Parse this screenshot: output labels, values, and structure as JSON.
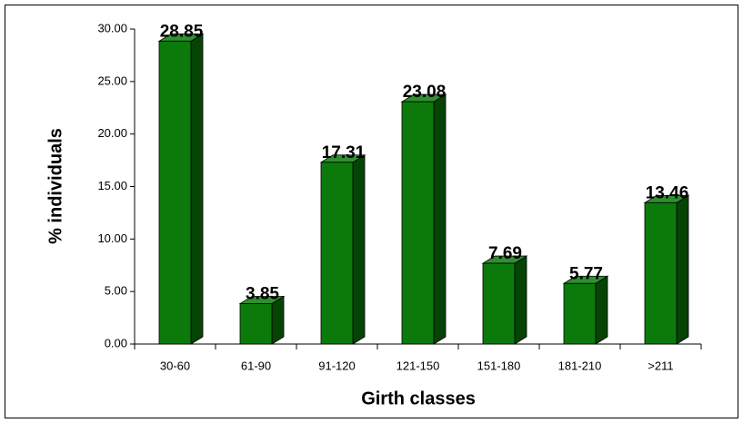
{
  "chart_data": {
    "type": "bar3d",
    "x_label": "Girth classes",
    "y_label": "% individuals",
    "categories": [
      "30-60",
      "61-90",
      "91-120",
      "121-150",
      "151-180",
      "181-210",
      ">211"
    ],
    "values": [
      28.85,
      3.85,
      17.31,
      23.08,
      7.69,
      5.77,
      13.46
    ],
    "color": "#0b7a0b",
    "ylim": [
      0,
      30
    ],
    "yticks": [
      {
        "value": 0,
        "label": "0.00"
      },
      {
        "value": 5,
        "label": "5.00"
      },
      {
        "value": 10,
        "label": "10.00"
      },
      {
        "value": 15,
        "label": "15.00"
      },
      {
        "value": 20,
        "label": "20.00"
      },
      {
        "value": 25,
        "label": "25.00"
      },
      {
        "value": 30,
        "label": "30.00"
      }
    ]
  }
}
